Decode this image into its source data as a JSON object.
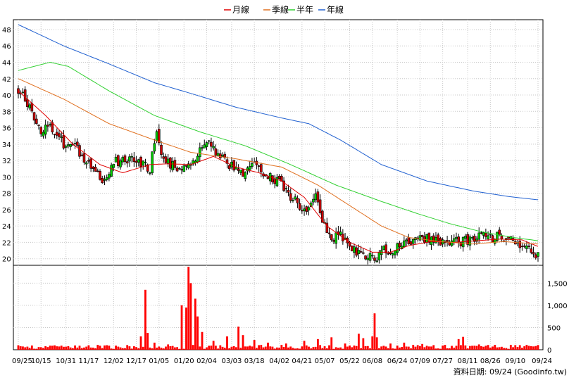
{
  "source_note": "資料日期: 09/24  (Goodinfo.tw)",
  "chart_data": [
    {
      "type": "line",
      "legend": [
        {
          "name": "月線",
          "color": "#e00000"
        },
        {
          "name": "季線",
          "color": "#e07020"
        },
        {
          "name": "半年",
          "color": "#30d030"
        },
        {
          "name": "年線",
          "color": "#2060d0"
        }
      ],
      "x_ticks": [
        "09/25",
        "10/15",
        "10/31",
        "11/17",
        "12/02",
        "12/17",
        "01/05",
        "01/20",
        "02/04",
        "03/03",
        "03/18",
        "04/02",
        "04/21",
        "05/07",
        "05/22",
        "06/08",
        "06/24",
        "07/09",
        "07/27",
        "08/11",
        "08/26",
        "09/10",
        "09/24"
      ],
      "y_ticks": [
        20,
        22,
        24,
        26,
        28,
        30,
        32,
        34,
        36,
        38,
        40,
        42,
        44,
        46,
        48
      ],
      "ylim": [
        19.2,
        49.2
      ],
      "grid": true,
      "price_key_points": [
        [
          0,
          40.5
        ],
        [
          3,
          39.5
        ],
        [
          6,
          38.0
        ],
        [
          10,
          35.5
        ],
        [
          14,
          36.2
        ],
        [
          20,
          34.0
        ],
        [
          26,
          33.5
        ],
        [
          32,
          31.0
        ],
        [
          38,
          29.5
        ],
        [
          42,
          31.8
        ],
        [
          48,
          32.2
        ],
        [
          54,
          31.5
        ],
        [
          58,
          31.0
        ],
        [
          61,
          36.0
        ],
        [
          63,
          32.5
        ],
        [
          67,
          31.5
        ],
        [
          71,
          30.8
        ],
        [
          75,
          31.2
        ],
        [
          79,
          32.5
        ],
        [
          82,
          34.5
        ],
        [
          87,
          33.0
        ],
        [
          92,
          31.5
        ],
        [
          96,
          31.0
        ],
        [
          100,
          30.5
        ],
        [
          104,
          31.5
        ],
        [
          109,
          30.5
        ],
        [
          114,
          29.5
        ],
        [
          119,
          28.0
        ],
        [
          124,
          26.5
        ],
        [
          128,
          26.0
        ],
        [
          131,
          28.0
        ],
        [
          134,
          24.5
        ],
        [
          138,
          22.5
        ],
        [
          142,
          22.8
        ],
        [
          146,
          21.5
        ],
        [
          150,
          20.5
        ],
        [
          154,
          20.2
        ],
        [
          158,
          20.3
        ],
        [
          161,
          21.0
        ],
        [
          164,
          20.8
        ],
        [
          168,
          21.5
        ],
        [
          172,
          22.0
        ],
        [
          176,
          22.5
        ],
        [
          180,
          22.4
        ],
        [
          185,
          22.2
        ],
        [
          190,
          22.1
        ],
        [
          195,
          22.0
        ],
        [
          200,
          22.5
        ],
        [
          204,
          23.2
        ],
        [
          208,
          22.5
        ],
        [
          212,
          22.7
        ],
        [
          216,
          22.5
        ],
        [
          220,
          22.0
        ],
        [
          224,
          21.2
        ],
        [
          229,
          20.3
        ]
      ],
      "series": [
        {
          "name": "月線",
          "color": "#e00000",
          "key_points": [
            [
              0,
              40.5
            ],
            [
              12,
              37.5
            ],
            [
              24,
              34.0
            ],
            [
              36,
              31.5
            ],
            [
              46,
              30.5
            ],
            [
              58,
              31.5
            ],
            [
              66,
              31.6
            ],
            [
              76,
              31.5
            ],
            [
              86,
              32.5
            ],
            [
              96,
              31.2
            ],
            [
              106,
              30.5
            ],
            [
              116,
              29.5
            ],
            [
              126,
              27.5
            ],
            [
              136,
              24.0
            ],
            [
              146,
              22.0
            ],
            [
              156,
              20.8
            ],
            [
              164,
              20.8
            ],
            [
              172,
              21.6
            ],
            [
              182,
              22.1
            ],
            [
              192,
              22.0
            ],
            [
              202,
              22.2
            ],
            [
              212,
              22.4
            ],
            [
              222,
              22.3
            ],
            [
              229,
              21.5
            ]
          ]
        },
        {
          "name": "季線",
          "color": "#e07020",
          "key_points": [
            [
              0,
              42.0
            ],
            [
              20,
              39.5
            ],
            [
              40,
              36.5
            ],
            [
              60,
              34.5
            ],
            [
              76,
              33.0
            ],
            [
              96,
              32.2
            ],
            [
              116,
              31.2
            ],
            [
              132,
              29.0
            ],
            [
              146,
              26.5
            ],
            [
              160,
              24.0
            ],
            [
              172,
              22.6
            ],
            [
              186,
              22.1
            ],
            [
              200,
              21.8
            ],
            [
              214,
              22.1
            ],
            [
              229,
              21.8
            ]
          ]
        },
        {
          "name": "半年",
          "color": "#30d030",
          "key_points": [
            [
              0,
              43.0
            ],
            [
              14,
              44.0
            ],
            [
              22,
              43.5
            ],
            [
              40,
              40.5
            ],
            [
              60,
              37.5
            ],
            [
              80,
              35.5
            ],
            [
              100,
              33.8
            ],
            [
              120,
              31.5
            ],
            [
              140,
              29.0
            ],
            [
              160,
              27.0
            ],
            [
              176,
              25.5
            ],
            [
              190,
              24.3
            ],
            [
              204,
              23.3
            ],
            [
              218,
              22.6
            ],
            [
              229,
              22.2
            ]
          ]
        },
        {
          "name": "年線",
          "color": "#2060d0",
          "key_points": [
            [
              0,
              48.6
            ],
            [
              20,
              46.0
            ],
            [
              40,
              43.8
            ],
            [
              60,
              41.5
            ],
            [
              76,
              40.2
            ],
            [
              96,
              38.5
            ],
            [
              116,
              37.2
            ],
            [
              128,
              36.5
            ],
            [
              142,
              34.5
            ],
            [
              160,
              31.5
            ],
            [
              180,
              29.5
            ],
            [
              200,
              28.3
            ],
            [
              216,
              27.6
            ],
            [
              229,
              27.2
            ]
          ]
        }
      ]
    },
    {
      "type": "bar",
      "y_ticks": [
        "0",
        "500",
        "1,000",
        "1,500"
      ],
      "y_tick_values": [
        0,
        500,
        1000,
        1500
      ],
      "ylim": [
        0,
        1870
      ],
      "grid": true,
      "color": "#ff0000",
      "spikes": [
        {
          "i": 4,
          "v": 70
        },
        {
          "i": 9,
          "v": 60
        },
        {
          "i": 15,
          "v": 90
        },
        {
          "i": 22,
          "v": 80
        },
        {
          "i": 30,
          "v": 70
        },
        {
          "i": 36,
          "v": 90
        },
        {
          "i": 44,
          "v": 70
        },
        {
          "i": 52,
          "v": 60
        },
        {
          "i": 54,
          "v": 300
        },
        {
          "i": 56,
          "v": 1350
        },
        {
          "i": 57,
          "v": 380
        },
        {
          "i": 60,
          "v": 160
        },
        {
          "i": 66,
          "v": 120
        },
        {
          "i": 72,
          "v": 1000
        },
        {
          "i": 74,
          "v": 950
        },
        {
          "i": 75,
          "v": 1870
        },
        {
          "i": 76,
          "v": 1500
        },
        {
          "i": 78,
          "v": 1150
        },
        {
          "i": 79,
          "v": 750
        },
        {
          "i": 81,
          "v": 400
        },
        {
          "i": 86,
          "v": 200
        },
        {
          "i": 92,
          "v": 300
        },
        {
          "i": 97,
          "v": 520
        },
        {
          "i": 99,
          "v": 330
        },
        {
          "i": 104,
          "v": 220
        },
        {
          "i": 110,
          "v": 160
        },
        {
          "i": 118,
          "v": 140
        },
        {
          "i": 126,
          "v": 200
        },
        {
          "i": 132,
          "v": 240
        },
        {
          "i": 138,
          "v": 280
        },
        {
          "i": 144,
          "v": 140
        },
        {
          "i": 150,
          "v": 360
        },
        {
          "i": 152,
          "v": 260
        },
        {
          "i": 156,
          "v": 300
        },
        {
          "i": 157,
          "v": 820
        },
        {
          "i": 158,
          "v": 280
        },
        {
          "i": 164,
          "v": 140
        },
        {
          "i": 170,
          "v": 160
        },
        {
          "i": 178,
          "v": 130
        },
        {
          "i": 188,
          "v": 110
        },
        {
          "i": 194,
          "v": 240
        },
        {
          "i": 196,
          "v": 290
        },
        {
          "i": 203,
          "v": 120
        },
        {
          "i": 210,
          "v": 110
        },
        {
          "i": 226,
          "v": 80
        }
      ]
    }
  ]
}
